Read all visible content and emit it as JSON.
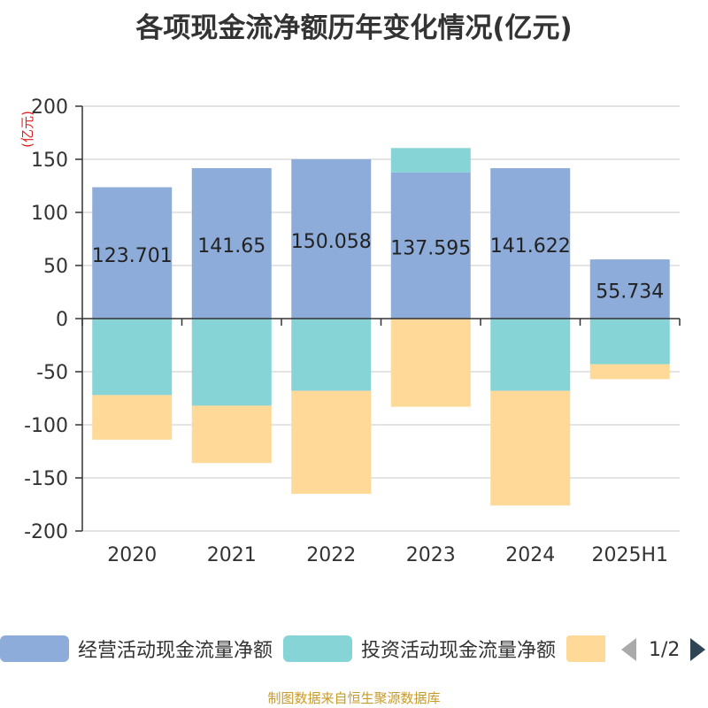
{
  "title": "各项现金流净额历年变化情况(亿元)",
  "footer": "制图数据来自恒生聚源数据库",
  "chart_data": {
    "type": "bar",
    "stacked": true,
    "categories": [
      "2020",
      "2021",
      "2022",
      "2023",
      "2024",
      "2025H1"
    ],
    "ylabel": "(亿元)",
    "ylim": [
      -200,
      200
    ],
    "yticks": [
      200,
      150,
      100,
      50,
      0,
      -50,
      -100,
      -150,
      -200
    ],
    "grid": true,
    "series": [
      {
        "name": "经营活动现金流量净额",
        "color": "#8eacd9",
        "values": [
          123.701,
          141.65,
          150.058,
          137.595,
          141.622,
          55.734
        ],
        "labels": [
          "123.701",
          "141.65",
          "150.058",
          "137.595",
          "141.622",
          "55.734"
        ]
      },
      {
        "name": "投资活动现金流量净额",
        "color": "#86d4d6",
        "values": [
          -72,
          -82,
          -68,
          23,
          -68,
          -43
        ]
      },
      {
        "name": "",
        "color": "#fed998",
        "values": [
          -42,
          -54,
          -97,
          -83,
          -108,
          -14
        ]
      }
    ],
    "legend": {
      "position": "bottom",
      "page": "1/2"
    }
  }
}
